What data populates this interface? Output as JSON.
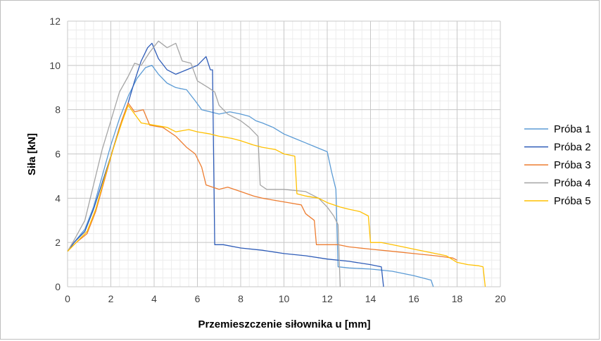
{
  "chart_data": {
    "type": "line",
    "title": "",
    "xlabel": "Przemieszczenie siłownika u [mm]",
    "ylabel": "Siła [kN]",
    "xlim": [
      0,
      20
    ],
    "ylim": [
      0,
      12
    ],
    "x_ticks": [
      0,
      2,
      4,
      6,
      8,
      10,
      12,
      14,
      16,
      18,
      20
    ],
    "y_ticks": [
      0,
      2,
      4,
      6,
      8,
      10,
      12
    ],
    "grid": true,
    "minor_grid": true,
    "legend_position": "right",
    "series": [
      {
        "name": "Próba 1",
        "color": "#5B9BD5",
        "points": [
          [
            0,
            1.6
          ],
          [
            0.3,
            2.0
          ],
          [
            0.8,
            2.6
          ],
          [
            1.2,
            3.6
          ],
          [
            1.6,
            5.0
          ],
          [
            2.0,
            6.4
          ],
          [
            2.4,
            7.6
          ],
          [
            2.8,
            8.6
          ],
          [
            3.2,
            9.4
          ],
          [
            3.6,
            9.9
          ],
          [
            3.9,
            10.0
          ],
          [
            4.2,
            9.6
          ],
          [
            4.6,
            9.2
          ],
          [
            5.0,
            9.0
          ],
          [
            5.5,
            8.9
          ],
          [
            5.9,
            8.4
          ],
          [
            6.2,
            8.0
          ],
          [
            6.6,
            7.9
          ],
          [
            7.0,
            7.8
          ],
          [
            7.5,
            7.9
          ],
          [
            8.0,
            7.8
          ],
          [
            8.4,
            7.7
          ],
          [
            8.7,
            7.5
          ],
          [
            9.0,
            7.4
          ],
          [
            9.5,
            7.2
          ],
          [
            10.0,
            6.9
          ],
          [
            10.5,
            6.7
          ],
          [
            11.0,
            6.5
          ],
          [
            11.5,
            6.3
          ],
          [
            12.0,
            6.1
          ],
          [
            12.2,
            5.2
          ],
          [
            12.4,
            4.4
          ],
          [
            12.5,
            0.9
          ],
          [
            13.0,
            0.85
          ],
          [
            14.0,
            0.8
          ],
          [
            15.0,
            0.7
          ],
          [
            16.0,
            0.5
          ],
          [
            16.8,
            0.3
          ],
          [
            16.9,
            0.0
          ]
        ]
      },
      {
        "name": "Próba 2",
        "color": "#2E5CB8",
        "points": [
          [
            0,
            1.6
          ],
          [
            0.3,
            2.0
          ],
          [
            0.8,
            2.5
          ],
          [
            1.2,
            3.5
          ],
          [
            1.6,
            4.7
          ],
          [
            2.0,
            5.9
          ],
          [
            2.4,
            7.2
          ],
          [
            2.8,
            8.3
          ],
          [
            3.1,
            9.3
          ],
          [
            3.4,
            10.2
          ],
          [
            3.7,
            10.8
          ],
          [
            3.9,
            11.0
          ],
          [
            4.2,
            10.3
          ],
          [
            4.6,
            9.8
          ],
          [
            5.0,
            9.6
          ],
          [
            5.5,
            9.8
          ],
          [
            6.0,
            10.0
          ],
          [
            6.4,
            10.4
          ],
          [
            6.6,
            9.8
          ],
          [
            6.7,
            9.8
          ],
          [
            6.8,
            1.9
          ],
          [
            7.2,
            1.9
          ],
          [
            8.0,
            1.75
          ],
          [
            9.0,
            1.65
          ],
          [
            10.0,
            1.5
          ],
          [
            11.0,
            1.4
          ],
          [
            12.0,
            1.25
          ],
          [
            13.0,
            1.15
          ],
          [
            14.0,
            1.0
          ],
          [
            14.5,
            0.9
          ],
          [
            14.6,
            0.0
          ]
        ]
      },
      {
        "name": "Próba 3",
        "color": "#ED7D31",
        "points": [
          [
            0,
            1.6
          ],
          [
            0.4,
            2.0
          ],
          [
            0.9,
            2.4
          ],
          [
            1.3,
            3.4
          ],
          [
            1.7,
            4.8
          ],
          [
            2.1,
            6.2
          ],
          [
            2.5,
            7.5
          ],
          [
            2.8,
            8.3
          ],
          [
            3.1,
            7.9
          ],
          [
            3.5,
            8.0
          ],
          [
            3.8,
            7.3
          ],
          [
            4.4,
            7.2
          ],
          [
            5.0,
            6.8
          ],
          [
            5.5,
            6.3
          ],
          [
            5.9,
            6.0
          ],
          [
            6.2,
            5.4
          ],
          [
            6.4,
            4.6
          ],
          [
            7.0,
            4.4
          ],
          [
            7.4,
            4.5
          ],
          [
            8.0,
            4.3
          ],
          [
            8.6,
            4.1
          ],
          [
            9.0,
            4.0
          ],
          [
            9.6,
            3.9
          ],
          [
            10.2,
            3.8
          ],
          [
            10.8,
            3.7
          ],
          [
            11.0,
            3.3
          ],
          [
            11.4,
            3.0
          ],
          [
            11.5,
            1.9
          ],
          [
            12.0,
            1.9
          ],
          [
            12.5,
            1.9
          ],
          [
            13.0,
            1.8
          ],
          [
            14.0,
            1.7
          ],
          [
            15.0,
            1.6
          ],
          [
            16.0,
            1.5
          ],
          [
            17.0,
            1.4
          ],
          [
            17.8,
            1.3
          ],
          [
            18.0,
            1.2
          ]
        ]
      },
      {
        "name": "Próba 4",
        "color": "#A5A5A5",
        "points": [
          [
            0,
            1.6
          ],
          [
            0.3,
            2.1
          ],
          [
            0.8,
            3.0
          ],
          [
            1.2,
            4.6
          ],
          [
            1.6,
            6.2
          ],
          [
            2.0,
            7.5
          ],
          [
            2.4,
            8.8
          ],
          [
            2.8,
            9.5
          ],
          [
            3.1,
            10.1
          ],
          [
            3.4,
            10.0
          ],
          [
            3.8,
            10.6
          ],
          [
            4.2,
            11.1
          ],
          [
            4.6,
            10.8
          ],
          [
            5.0,
            11.0
          ],
          [
            5.3,
            10.2
          ],
          [
            5.7,
            10.1
          ],
          [
            6.0,
            9.3
          ],
          [
            6.5,
            9.0
          ],
          [
            6.8,
            8.8
          ],
          [
            7.0,
            8.2
          ],
          [
            7.4,
            7.8
          ],
          [
            8.0,
            7.5
          ],
          [
            8.4,
            7.2
          ],
          [
            8.8,
            6.8
          ],
          [
            8.9,
            4.6
          ],
          [
            9.2,
            4.4
          ],
          [
            10.0,
            4.4
          ],
          [
            11.0,
            4.3
          ],
          [
            11.6,
            4.0
          ],
          [
            12.0,
            3.6
          ],
          [
            12.3,
            3.2
          ],
          [
            12.5,
            2.8
          ],
          [
            12.6,
            0.0
          ]
        ]
      },
      {
        "name": "Próba 5",
        "color": "#FFC000",
        "points": [
          [
            0,
            1.6
          ],
          [
            0.4,
            2.0
          ],
          [
            0.9,
            2.5
          ],
          [
            1.3,
            3.5
          ],
          [
            1.7,
            4.9
          ],
          [
            2.1,
            6.2
          ],
          [
            2.5,
            7.4
          ],
          [
            2.8,
            8.2
          ],
          [
            3.1,
            7.8
          ],
          [
            3.4,
            7.4
          ],
          [
            4.0,
            7.3
          ],
          [
            4.6,
            7.2
          ],
          [
            5.0,
            7.0
          ],
          [
            5.6,
            7.1
          ],
          [
            6.0,
            7.0
          ],
          [
            6.6,
            6.9
          ],
          [
            7.0,
            6.8
          ],
          [
            7.6,
            6.7
          ],
          [
            8.0,
            6.6
          ],
          [
            8.6,
            6.4
          ],
          [
            9.0,
            6.3
          ],
          [
            9.6,
            6.2
          ],
          [
            10.0,
            6.0
          ],
          [
            10.5,
            5.9
          ],
          [
            10.6,
            4.2
          ],
          [
            11.0,
            4.1
          ],
          [
            11.6,
            4.0
          ],
          [
            12.0,
            3.8
          ],
          [
            12.6,
            3.6
          ],
          [
            13.0,
            3.5
          ],
          [
            13.5,
            3.4
          ],
          [
            13.9,
            3.2
          ],
          [
            14.0,
            2.0
          ],
          [
            14.5,
            2.0
          ],
          [
            15.0,
            1.9
          ],
          [
            15.5,
            1.8
          ],
          [
            16.0,
            1.7
          ],
          [
            16.5,
            1.6
          ],
          [
            17.0,
            1.5
          ],
          [
            17.5,
            1.4
          ],
          [
            18.0,
            1.1
          ],
          [
            18.5,
            1.0
          ],
          [
            19.0,
            0.95
          ],
          [
            19.2,
            0.9
          ],
          [
            19.3,
            0.0
          ]
        ]
      }
    ]
  }
}
